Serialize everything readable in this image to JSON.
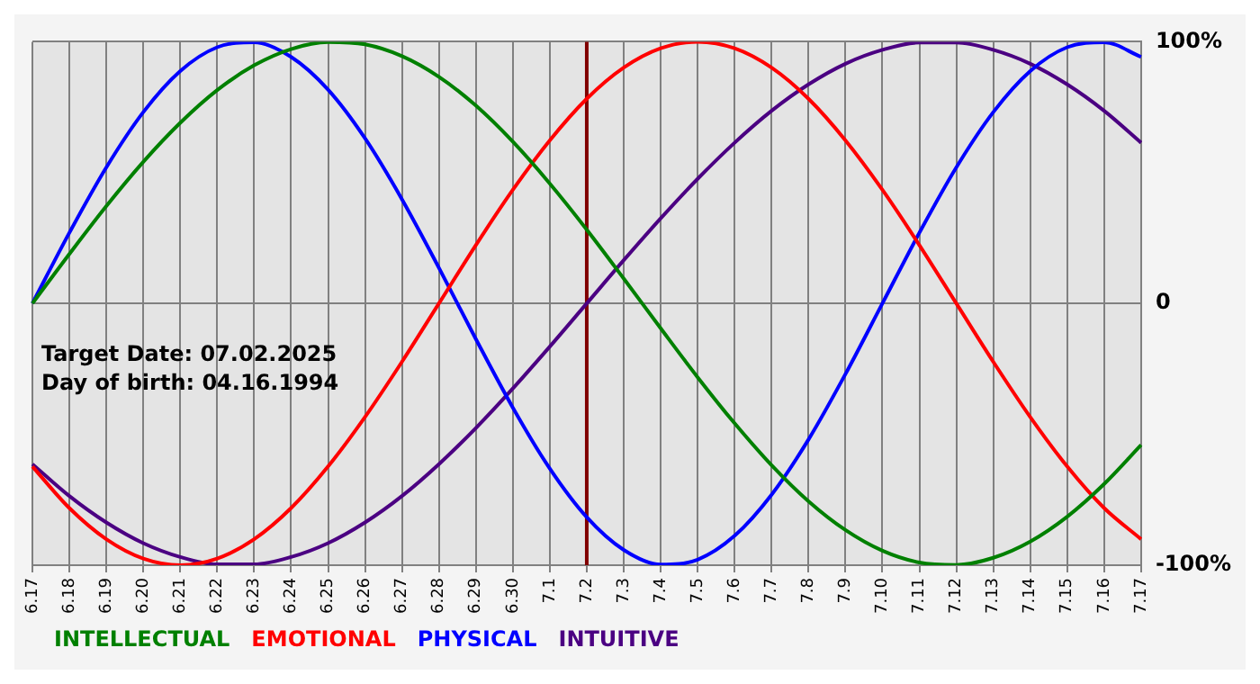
{
  "chart_data": {
    "type": "line",
    "categories": [
      "6.17",
      "6.18",
      "6.19",
      "6.20",
      "6.21",
      "6.22",
      "6.23",
      "6.24",
      "6.25",
      "6.26",
      "6.27",
      "6.28",
      "6.29",
      "6.30",
      "7.1",
      "7.2",
      "7.3",
      "7.4",
      "7.5",
      "7.6",
      "7.7",
      "7.8",
      "7.9",
      "7.10",
      "7.11",
      "7.12",
      "7.13",
      "7.14",
      "7.15",
      "7.16",
      "7.17"
    ],
    "series": [
      {
        "name": "INTELLECTUAL",
        "color": "#008000",
        "values": [
          0,
          18.9,
          37.2,
          54.1,
          69.0,
          81.5,
          91.0,
          97.2,
          99.9,
          99.0,
          94.5,
          86.6,
          75.6,
          61.8,
          45.8,
          28.2,
          9.5,
          -9.5,
          -28.2,
          -45.8,
          -61.8,
          -75.6,
          -86.6,
          -94.5,
          -99.0,
          -99.9,
          -97.2,
          -91.0,
          -81.5,
          -69.0,
          -54.1
        ]
      },
      {
        "name": "EMOTIONAL",
        "color": "#ff0000",
        "values": [
          -62.3,
          -78.2,
          -90.1,
          -97.5,
          -100,
          -97.5,
          -90.1,
          -78.2,
          -62.3,
          -43.4,
          -22.3,
          0,
          22.3,
          43.4,
          62.3,
          78.2,
          90.1,
          97.5,
          100,
          97.5,
          90.1,
          78.2,
          62.3,
          43.4,
          22.3,
          0,
          -22.3,
          -43.4,
          -62.3,
          -78.2,
          -90.1
        ]
      },
      {
        "name": "PHYSICAL",
        "color": "#0000ff",
        "values": [
          0,
          27.0,
          52.0,
          73.1,
          88.8,
          97.9,
          99.8,
          94.2,
          81.7,
          63.1,
          39.8,
          13.6,
          -13.6,
          -39.8,
          -63.1,
          -81.7,
          -94.2,
          -99.8,
          -97.9,
          -88.8,
          -73.1,
          -52.0,
          -27.0,
          0,
          27.0,
          52.0,
          73.1,
          88.8,
          97.9,
          99.8,
          94.2
        ]
      },
      {
        "name": "INTUITIVE",
        "color": "#4b0082",
        "values": [
          -61.4,
          -73.6,
          -83.7,
          -91.6,
          -96.9,
          -99.7,
          -99.7,
          -96.9,
          -91.6,
          -83.7,
          -73.6,
          -61.4,
          -47.6,
          -32.5,
          -16.5,
          0,
          16.5,
          32.5,
          47.6,
          61.4,
          73.6,
          83.7,
          91.6,
          96.9,
          99.7,
          99.7,
          96.9,
          91.6,
          83.7,
          73.6,
          61.4
        ]
      }
    ],
    "ylim": [
      -100,
      100
    ],
    "yticks": [
      {
        "value": -100,
        "label": "-100%"
      },
      0,
      {
        "value": 100,
        "label": "100%"
      }
    ],
    "ref_lines": [
      {
        "axis": "x",
        "value": "7.2",
        "color": "#800000"
      }
    ],
    "annotations": [
      "Target Date: 07.02.2025",
      "Day of birth: 04.16.1994"
    ],
    "grid": true,
    "legend": "bottom left",
    "marker": "none",
    "line_style": "solid"
  }
}
